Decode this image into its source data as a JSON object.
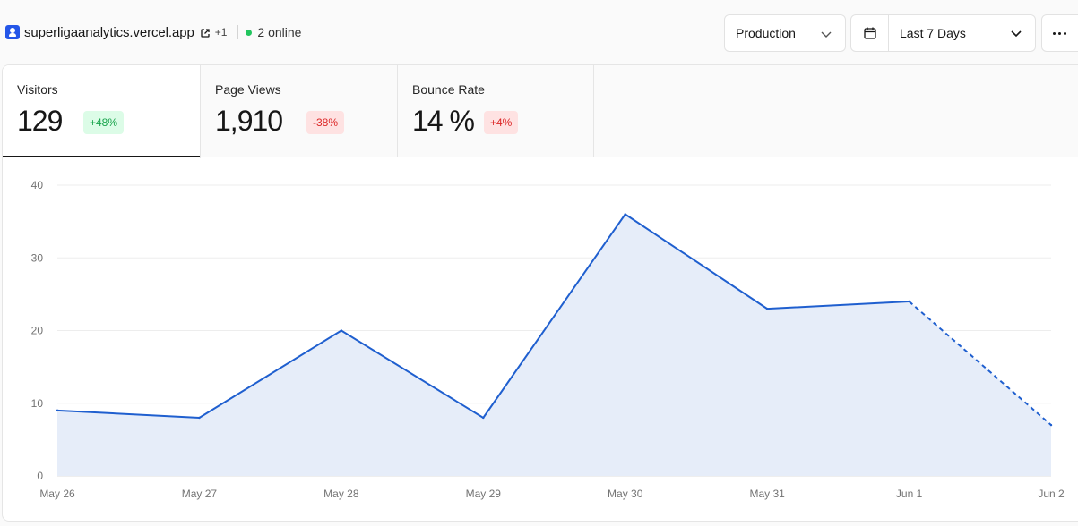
{
  "header": {
    "site_name": "superligaanalytics.vercel.app",
    "extra_count": "+1",
    "online_text": "2 online",
    "environment": "Production",
    "date_range": "Last 7 Days",
    "icons": [
      "external-link-icon",
      "calendar-icon",
      "chevron-down-icon",
      "more-icon"
    ]
  },
  "colors": {
    "accent": "#1f5fcf",
    "area_fill": "#e6edf9",
    "online": "#22c55e",
    "positive": "#16a34a",
    "negative": "#dc2626"
  },
  "metrics": [
    {
      "label": "Visitors",
      "value": "129",
      "change": "+48%",
      "trend": "up",
      "active": true
    },
    {
      "label": "Page Views",
      "value": "1,910",
      "change": "-38%",
      "trend": "down",
      "active": false
    },
    {
      "label": "Bounce Rate",
      "value": "14 %",
      "change": "+4%",
      "trend": "down",
      "active": false
    }
  ],
  "chart_data": {
    "type": "area",
    "categories": [
      "May 26",
      "May 27",
      "May 28",
      "May 29",
      "May 30",
      "May 31",
      "Jun 1",
      "Jun 2"
    ],
    "series": [
      {
        "values": [
          9,
          8,
          20,
          8,
          36,
          23,
          24,
          7
        ]
      }
    ],
    "dashed_from_index": 6,
    "ylim": [
      0,
      40
    ],
    "yticks": [
      0,
      10,
      20,
      30,
      40
    ],
    "grid": true
  }
}
